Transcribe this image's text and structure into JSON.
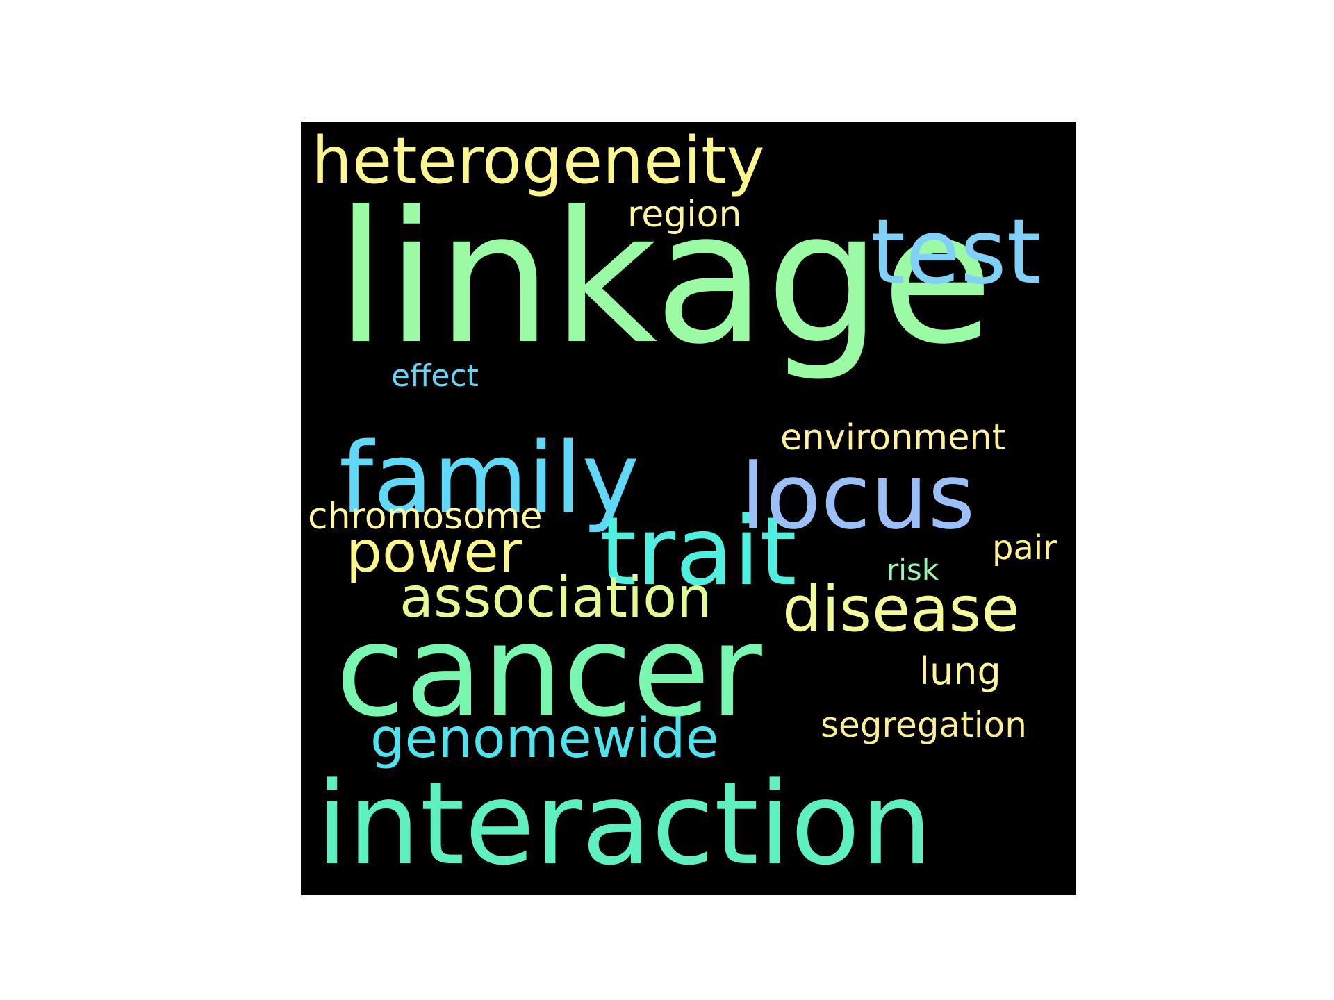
{
  "words": [
    {
      "key": "linkage",
      "text": "linkage",
      "color": "#9bfba5"
    },
    {
      "key": "cancer",
      "text": "cancer",
      "color": "#79f6b0"
    },
    {
      "key": "interaction",
      "text": "interaction",
      "color": "#5ef0c0"
    },
    {
      "key": "family",
      "text": "family",
      "color": "#60d8f7"
    },
    {
      "key": "trait",
      "text": "trait",
      "color": "#4ff0e0"
    },
    {
      "key": "locus",
      "text": "locus",
      "color": "#9cbff8"
    },
    {
      "key": "test",
      "text": "test",
      "color": "#80d0f8"
    },
    {
      "key": "heterogeneity",
      "text": "heterogeneity",
      "color": "#fbf68f"
    },
    {
      "key": "disease",
      "text": "disease",
      "color": "#f4fa99"
    },
    {
      "key": "association",
      "text": "association",
      "color": "#e3fb92"
    },
    {
      "key": "genomewide",
      "text": "genomewide",
      "color": "#4fe3ee"
    },
    {
      "key": "power",
      "text": "power",
      "color": "#fcf78d"
    },
    {
      "key": "environment",
      "text": "environment",
      "color": "#fff1a0"
    },
    {
      "key": "chromosome",
      "text": "chromosome",
      "color": "#fff6a2"
    },
    {
      "key": "segregation",
      "text": "segregation",
      "color": "#fcef95"
    },
    {
      "key": "region",
      "text": "region",
      "color": "#fff4a4"
    },
    {
      "key": "lung",
      "text": "lung",
      "color": "#fff39b"
    },
    {
      "key": "effect",
      "text": "effect",
      "color": "#68d3f6"
    },
    {
      "key": "pair",
      "text": "pair",
      "color": "#fff192"
    },
    {
      "key": "risk",
      "text": "risk",
      "color": "#9bf7b0"
    }
  ]
}
